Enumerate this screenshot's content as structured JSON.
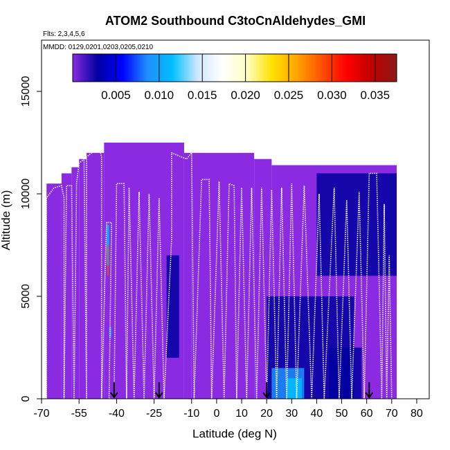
{
  "chart_data": {
    "type": "heatmap",
    "title": "ATOM2 Southbound C3toCnAldehydes_GMI",
    "subtitle_flights": "Flts: 2,3,4,5,6",
    "subtitle_dates": "MMDD: 0129,0201,0203,0205,0210",
    "xlabel": "Latitude (deg N)",
    "ylabel": "Altitude (m)",
    "xlim": [
      -70,
      85
    ],
    "ylim": [
      0,
      17500
    ],
    "x_ticks": [
      -70,
      -55,
      -40,
      -25,
      -10,
      0,
      10,
      20,
      30,
      40,
      50,
      60,
      70,
      80
    ],
    "y_ticks": [
      0,
      5000,
      10000,
      15000
    ],
    "grid": false,
    "colorbar": {
      "range": [
        0,
        0.0375
      ],
      "tick_values": [
        0.005,
        0.01,
        0.015,
        0.02,
        0.025,
        0.03,
        0.035
      ],
      "tick_labels": [
        "0.005",
        "0.010",
        "0.015",
        "0.020",
        "0.025",
        "0.030",
        "0.035"
      ],
      "colors": [
        "#8a2be2",
        "#0000a0",
        "#0000ff",
        "#1e90ff",
        "#00bfff",
        "#cfe8ff",
        "#ffffff",
        "#ffffc0",
        "#ffe000",
        "#ffa500",
        "#ff5000",
        "#ff0000",
        "#c00000",
        "#8b1a1a"
      ]
    },
    "background_value": 0.0015,
    "curtain_columns": [
      {
        "x0": -68,
        "x1": -62,
        "top": 10500
      },
      {
        "x0": -62,
        "x1": -58,
        "top": 11000
      },
      {
        "x0": -58,
        "x1": -55,
        "top": 11300
      },
      {
        "x0": -55,
        "x1": -52,
        "top": 11700
      },
      {
        "x0": -52,
        "x1": -45,
        "top": 12000
      },
      {
        "x0": -45,
        "x1": -13,
        "top": 12500
      },
      {
        "x0": -13,
        "x1": -10,
        "top": 12000
      },
      {
        "x0": -10,
        "x1": 15,
        "top": 12000
      },
      {
        "x0": 15,
        "x1": 22,
        "top": 11700
      },
      {
        "x0": 22,
        "x1": 72,
        "top": 11400
      }
    ],
    "patches": [
      {
        "x0": 20,
        "x1": 55,
        "y0": 0,
        "y1": 5000,
        "value": 0.005
      },
      {
        "x0": 22,
        "x1": 35,
        "y0": 0,
        "y1": 1500,
        "value": 0.009
      },
      {
        "x0": 28,
        "x1": 34,
        "y0": 0,
        "y1": 1000,
        "value": 0.011
      },
      {
        "x0": 45,
        "x1": 58,
        "y0": 0,
        "y1": 2500,
        "value": 0.005
      },
      {
        "x0": 40,
        "x1": 72,
        "y0": 6000,
        "y1": 11000,
        "value": 0.004
      },
      {
        "x0": -20,
        "x1": -15,
        "y0": 2000,
        "y1": 7000,
        "value": 0.003
      },
      {
        "x0": -44,
        "x1": -43,
        "y0": 6500,
        "y1": 8500,
        "value": 0.013
      },
      {
        "x0": -43.7,
        "x1": -43.2,
        "y0": 6000,
        "y1": 7500,
        "value": 0.028
      },
      {
        "x0": -43,
        "x1": -42,
        "y0": 3000,
        "y1": 3500,
        "value": 0.009
      }
    ],
    "flight_track": [
      [
        -69,
        9000
      ],
      [
        -68,
        0
      ],
      [
        -68,
        9800
      ],
      [
        -65,
        10300
      ],
      [
        -62,
        10400
      ],
      [
        -61,
        9800
      ],
      [
        -61,
        0
      ],
      [
        -60,
        10400
      ],
      [
        -58,
        10400
      ],
      [
        -57,
        0
      ],
      [
        -56,
        10500
      ],
      [
        -55,
        11500
      ],
      [
        -53,
        11700
      ],
      [
        -52,
        0
      ],
      [
        -52,
        11800
      ],
      [
        -50,
        12000
      ],
      [
        -47,
        12300
      ],
      [
        -46,
        11800
      ],
      [
        -46,
        0
      ],
      [
        -44,
        8600
      ],
      [
        -42,
        8600
      ],
      [
        -43,
        0
      ],
      [
        -41,
        0
      ],
      [
        -40,
        10500
      ],
      [
        -37,
        10500
      ],
      [
        -36,
        0
      ],
      [
        -35,
        10300
      ],
      [
        -33,
        0
      ],
      [
        -31,
        10100
      ],
      [
        -29,
        0
      ],
      [
        -27,
        10000
      ],
      [
        -25,
        0
      ],
      [
        -23,
        9800
      ],
      [
        -21,
        0
      ],
      [
        -18,
        7800
      ],
      [
        -18,
        12000
      ],
      [
        -12,
        11700
      ],
      [
        -10,
        12000
      ],
      [
        -9,
        0
      ],
      [
        -6,
        10700
      ],
      [
        -3,
        10700
      ],
      [
        -2,
        0
      ],
      [
        1,
        10600
      ],
      [
        3,
        0
      ],
      [
        5,
        10500
      ],
      [
        7,
        10400
      ],
      [
        8,
        0
      ],
      [
        10,
        10300
      ],
      [
        12,
        0
      ],
      [
        14,
        10300
      ],
      [
        16,
        0
      ],
      [
        18,
        10300
      ],
      [
        20,
        0
      ],
      [
        22,
        10200
      ],
      [
        24,
        0
      ],
      [
        26,
        10300
      ],
      [
        28,
        0
      ],
      [
        30,
        10500
      ],
      [
        32,
        0
      ],
      [
        35,
        10400
      ],
      [
        38,
        0
      ],
      [
        41,
        10000
      ],
      [
        43,
        0
      ],
      [
        47,
        10300
      ],
      [
        49,
        0
      ],
      [
        52,
        9700
      ],
      [
        54,
        0
      ],
      [
        57,
        10100
      ],
      [
        59,
        0
      ],
      [
        61,
        11000
      ],
      [
        64,
        11000
      ],
      [
        66,
        0
      ],
      [
        67,
        9500
      ],
      [
        68,
        0
      ],
      [
        69,
        7000
      ],
      [
        70,
        0
      ]
    ],
    "markers": [
      -41,
      -23,
      20,
      61
    ]
  }
}
